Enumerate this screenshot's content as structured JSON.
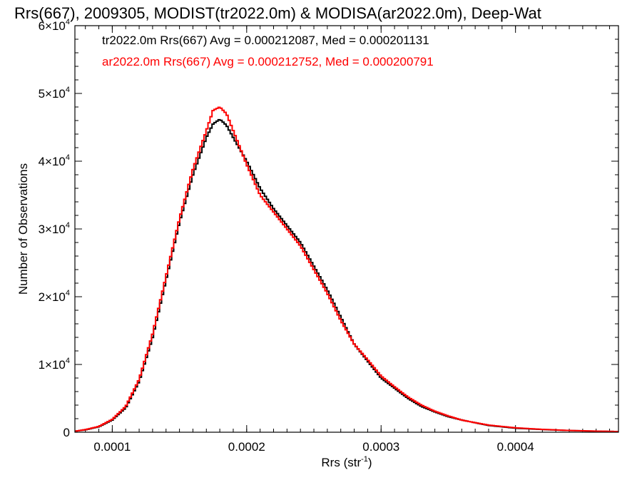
{
  "chart_data": {
    "type": "histogram-step",
    "title": "Rrs(667), 2009305, MODIST(tr2022.0m) & MODISA(ar2022.0m), Deep-Wat",
    "xlabel": "Rrs (str",
    "xlabel_sup": "-1",
    "xlabel_close": ")",
    "ylabel": "Number of Observations",
    "xlim": [
      7.22e-05,
      0.0004766
    ],
    "ylim": [
      0,
      60000
    ],
    "x_ticks": [
      {
        "value": 0.0001,
        "label": "0.0001"
      },
      {
        "value": 0.0002,
        "label": "0.0002"
      },
      {
        "value": 0.0003,
        "label": "0.0003"
      },
      {
        "value": 0.0004,
        "label": "0.0004"
      }
    ],
    "y_ticks": [
      {
        "value": 0,
        "mant": "0",
        "exp": ""
      },
      {
        "value": 10000,
        "mant": "1×10",
        "exp": "4"
      },
      {
        "value": 20000,
        "mant": "2×10",
        "exp": "4"
      },
      {
        "value": 30000,
        "mant": "3×10",
        "exp": "4"
      },
      {
        "value": 40000,
        "mant": "4×10",
        "exp": "4"
      },
      {
        "value": 50000,
        "mant": "5×10",
        "exp": "4"
      },
      {
        "value": 60000,
        "mant": "6×10",
        "exp": "4"
      }
    ],
    "x_minor_step": 1e-05,
    "y_minor_step": 2000,
    "legend": [
      {
        "text": "tr2022.0m Rrs(667) Avg = 0.000212087, Med = 0.000201131",
        "color": "#000000"
      },
      {
        "text": "ar2022.0m Rrs(667) Avg = 0.000212752, Med = 0.000200791",
        "color": "#ff0000"
      }
    ],
    "legend_position": "top-left",
    "series": [
      {
        "color": "#000000",
        "points": [
          [
            7.22e-05,
            150
          ],
          [
            8e-05,
            350
          ],
          [
            9e-05,
            800
          ],
          [
            0.0001,
            1800
          ],
          [
            0.00011,
            3600
          ],
          [
            0.00012,
            7500
          ],
          [
            0.00013,
            14000
          ],
          [
            0.00014,
            22500
          ],
          [
            0.00015,
            31000
          ],
          [
            0.00016,
            38000
          ],
          [
            0.00017,
            43500
          ],
          [
            0.000175,
            45500
          ],
          [
            0.00018,
            46200
          ],
          [
            0.000185,
            45300
          ],
          [
            0.00019,
            43500
          ],
          [
            0.0002,
            40000
          ],
          [
            0.00021,
            36000
          ],
          [
            0.00022,
            33000
          ],
          [
            0.00023,
            30500
          ],
          [
            0.00024,
            28000
          ],
          [
            0.00025,
            24500
          ],
          [
            0.00026,
            21000
          ],
          [
            0.00027,
            17000
          ],
          [
            0.00028,
            13000
          ],
          [
            0.00029,
            10500
          ],
          [
            0.0003,
            8000
          ],
          [
            0.00031,
            6500
          ],
          [
            0.00032,
            5000
          ],
          [
            0.00033,
            3800
          ],
          [
            0.00034,
            3000
          ],
          [
            0.00035,
            2300
          ],
          [
            0.00036,
            1800
          ],
          [
            0.00037,
            1400
          ],
          [
            0.00038,
            1000
          ],
          [
            0.0004,
            600
          ],
          [
            0.00042,
            400
          ],
          [
            0.00044,
            250
          ],
          [
            0.00046,
            150
          ],
          [
            0.0004766,
            100
          ]
        ]
      },
      {
        "color": "#ff0000",
        "points": [
          [
            7.22e-05,
            150
          ],
          [
            8e-05,
            380
          ],
          [
            9e-05,
            850
          ],
          [
            0.0001,
            1900
          ],
          [
            0.00011,
            3800
          ],
          [
            0.00012,
            7800
          ],
          [
            0.00013,
            14500
          ],
          [
            0.00014,
            23000
          ],
          [
            0.00015,
            31500
          ],
          [
            0.00016,
            38800
          ],
          [
            0.00017,
            44500
          ],
          [
            0.000175,
            47500
          ],
          [
            0.00018,
            48000
          ],
          [
            0.000185,
            47000
          ],
          [
            0.00019,
            44500
          ],
          [
            0.0002,
            39500
          ],
          [
            0.00021,
            35000
          ],
          [
            0.00022,
            32500
          ],
          [
            0.00023,
            30000
          ],
          [
            0.00024,
            27500
          ],
          [
            0.00025,
            24000
          ],
          [
            0.00026,
            20500
          ],
          [
            0.00027,
            16500
          ],
          [
            0.00028,
            13000
          ],
          [
            0.00029,
            10700
          ],
          [
            0.0003,
            8300
          ],
          [
            0.00031,
            6700
          ],
          [
            0.00032,
            5200
          ],
          [
            0.00033,
            4000
          ],
          [
            0.00034,
            3100
          ],
          [
            0.00035,
            2400
          ],
          [
            0.00036,
            1800
          ],
          [
            0.00037,
            1400
          ],
          [
            0.00038,
            1050
          ],
          [
            0.0004,
            650
          ],
          [
            0.00042,
            420
          ],
          [
            0.00044,
            260
          ],
          [
            0.00046,
            160
          ],
          [
            0.0004766,
            100
          ]
        ]
      }
    ]
  }
}
